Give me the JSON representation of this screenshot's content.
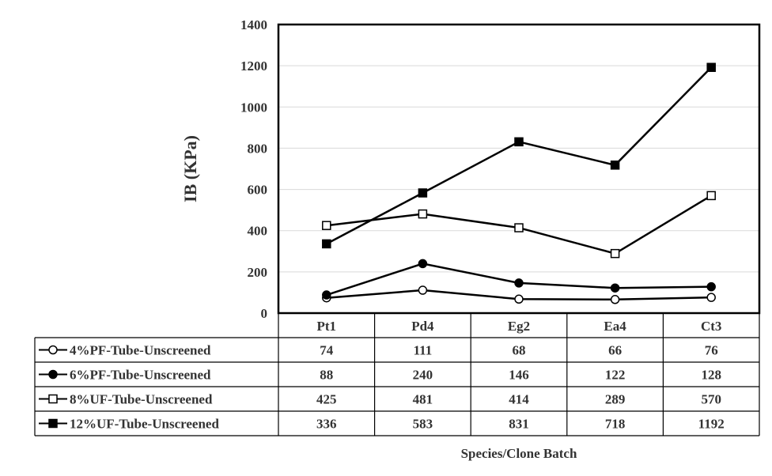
{
  "chart_data": {
    "type": "line",
    "categories": [
      "Pt1",
      "Pd4",
      "Eg2",
      "Ea4",
      "Ct3"
    ],
    "series": [
      {
        "name": "4%PF-Tube-Unscreened",
        "values": [
          74,
          111,
          68,
          66,
          76
        ],
        "marker": "open-circle"
      },
      {
        "name": "6%PF-Tube-Unscreened",
        "values": [
          88,
          240,
          146,
          122,
          128
        ],
        "marker": "filled-circle"
      },
      {
        "name": "8%UF-Tube-Unscreened",
        "values": [
          425,
          481,
          414,
          289,
          570
        ],
        "marker": "open-square"
      },
      {
        "name": "12%UF-Tube-Unscreened",
        "values": [
          336,
          583,
          831,
          718,
          1192
        ],
        "marker": "filled-square"
      }
    ],
    "ylabel": "IB (KPa)",
    "xlabel": "Species/Clone Batch",
    "ylim": [
      0,
      1400
    ],
    "yticks": [
      0,
      200,
      400,
      600,
      800,
      1000,
      1200,
      1400
    ],
    "grid": true,
    "legend": "data-table-below",
    "colors": {
      "line": "#000000",
      "grid": "#d9d9d9",
      "text": "#333333"
    }
  }
}
